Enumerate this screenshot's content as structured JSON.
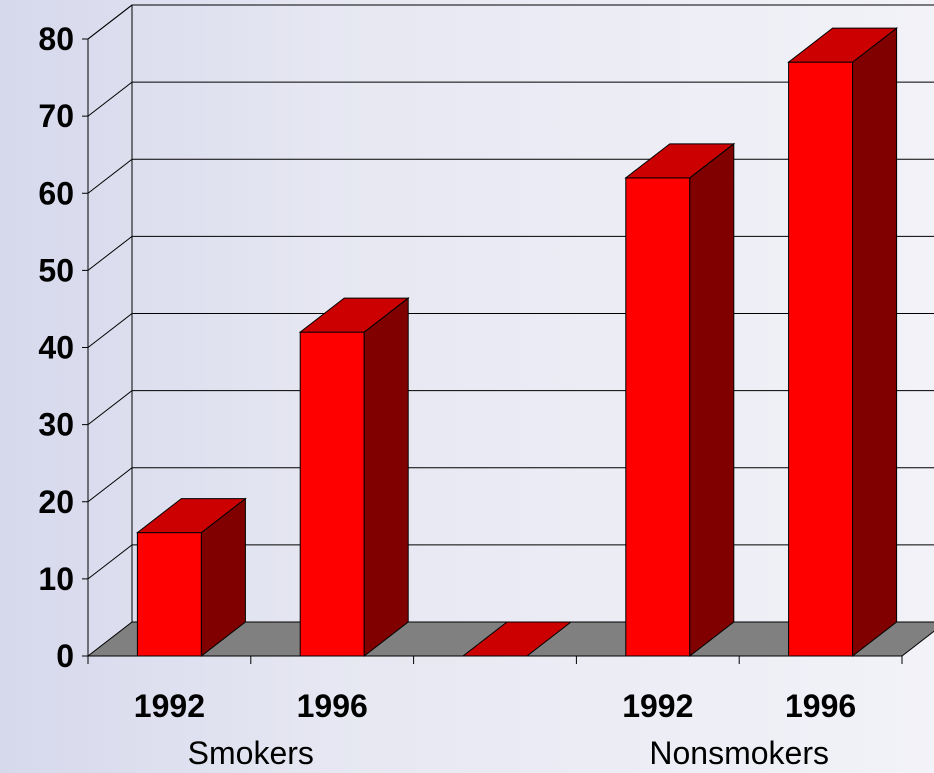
{
  "chart_data": {
    "type": "bar",
    "categories": [
      "Smokers 1992",
      "Smokers 1996",
      "",
      "Nonsmokers 1992",
      "Nonsmokers 1996"
    ],
    "values": [
      16,
      42,
      0,
      62,
      77
    ],
    "year_labels": [
      "1992",
      "1996",
      "",
      "1992",
      "1996"
    ],
    "groups": [
      {
        "label": "Smokers"
      },
      {
        "label": "Nonsmokers"
      }
    ],
    "yticks": [
      "0",
      "10",
      "20",
      "30",
      "40",
      "50",
      "60",
      "70",
      "80"
    ],
    "ylim": [
      0,
      80
    ],
    "grid": true,
    "style": "3d",
    "colors": {
      "front": "#ff0000",
      "top": "#cc0000",
      "side": "#800000",
      "floor": "#808080"
    }
  }
}
